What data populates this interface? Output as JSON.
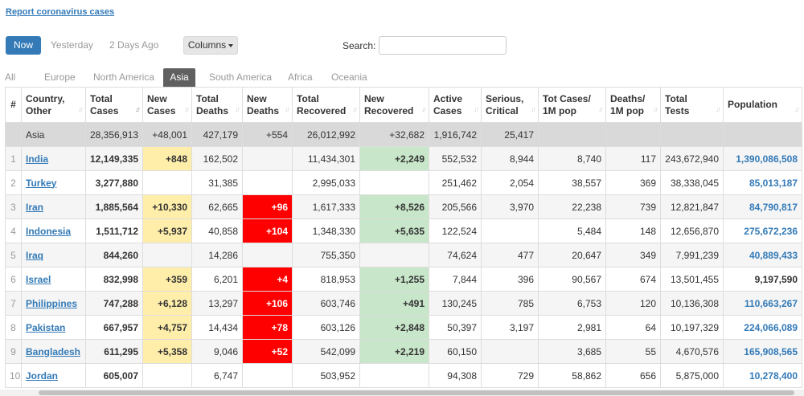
{
  "report_link": "Report coronavirus cases",
  "day_buttons": {
    "now": "Now",
    "yesterday": "Yesterday",
    "two_days": "2 Days Ago"
  },
  "columns_button": "Columns",
  "search": {
    "label": "Search:",
    "value": "",
    "placeholder": ""
  },
  "tabs": [
    "All",
    "Europe",
    "North America",
    "Asia",
    "South America",
    "Africa",
    "Oceania"
  ],
  "active_tab": "Asia",
  "headers": [
    {
      "l1": "#",
      "l2": ""
    },
    {
      "l1": "Country,",
      "l2": "Other"
    },
    {
      "l1": "Total",
      "l2": "Cases"
    },
    {
      "l1": "New",
      "l2": "Cases"
    },
    {
      "l1": "Total",
      "l2": "Deaths"
    },
    {
      "l1": "New",
      "l2": "Deaths"
    },
    {
      "l1": "Total",
      "l2": "Recovered"
    },
    {
      "l1": "New",
      "l2": "Recovered"
    },
    {
      "l1": "Active",
      "l2": "Cases"
    },
    {
      "l1": "Serious,",
      "l2": "Critical"
    },
    {
      "l1": "Tot Cases/",
      "l2": "1M pop"
    },
    {
      "l1": "Deaths/",
      "l2": "1M pop"
    },
    {
      "l1": "Total",
      "l2": "Tests"
    },
    {
      "l1": "",
      "l2": "Population"
    }
  ],
  "total_row": {
    "label": "Asia",
    "total_cases": "28,356,913",
    "new_cases": "+48,001",
    "total_deaths": "427,179",
    "new_deaths": "+554",
    "total_recovered": "26,012,992",
    "new_recovered": "+32,682",
    "active": "1,916,742",
    "critical": "25,417",
    "per_million": "",
    "deaths_per_million": "",
    "tests": "",
    "population": ""
  },
  "rows": [
    {
      "n": "1",
      "country": "India",
      "total_cases": "12,149,335",
      "new_cases": "+848",
      "total_deaths": "162,502",
      "new_deaths": "",
      "total_recovered": "11,434,301",
      "new_recovered": "+2,249",
      "active": "552,532",
      "critical": "8,944",
      "per_million": "8,740",
      "deaths_per_million": "117",
      "tests": "243,672,940",
      "population": "1,390,086,508"
    },
    {
      "n": "2",
      "country": "Turkey",
      "total_cases": "3,277,880",
      "new_cases": "",
      "total_deaths": "31,385",
      "new_deaths": "",
      "total_recovered": "2,995,033",
      "new_recovered": "",
      "active": "251,462",
      "critical": "2,054",
      "per_million": "38,557",
      "deaths_per_million": "369",
      "tests": "38,338,045",
      "population": "85,013,187"
    },
    {
      "n": "3",
      "country": "Iran",
      "total_cases": "1,885,564",
      "new_cases": "+10,330",
      "total_deaths": "62,665",
      "new_deaths": "+96",
      "total_recovered": "1,617,333",
      "new_recovered": "+8,526",
      "active": "205,566",
      "critical": "3,970",
      "per_million": "22,238",
      "deaths_per_million": "739",
      "tests": "12,821,847",
      "population": "84,790,817"
    },
    {
      "n": "4",
      "country": "Indonesia",
      "total_cases": "1,511,712",
      "new_cases": "+5,937",
      "total_deaths": "40,858",
      "new_deaths": "+104",
      "total_recovered": "1,348,330",
      "new_recovered": "+5,635",
      "active": "122,524",
      "critical": "",
      "per_million": "5,484",
      "deaths_per_million": "148",
      "tests": "12,656,870",
      "population": "275,672,236"
    },
    {
      "n": "5",
      "country": "Iraq",
      "total_cases": "844,260",
      "new_cases": "",
      "total_deaths": "14,286",
      "new_deaths": "",
      "total_recovered": "755,350",
      "new_recovered": "",
      "active": "74,624",
      "critical": "477",
      "per_million": "20,647",
      "deaths_per_million": "349",
      "tests": "7,991,239",
      "population": "40,889,433"
    },
    {
      "n": "6",
      "country": "Israel",
      "total_cases": "832,998",
      "new_cases": "+359",
      "total_deaths": "6,201",
      "new_deaths": "+4",
      "total_recovered": "818,953",
      "new_recovered": "+1,255",
      "active": "7,844",
      "critical": "396",
      "per_million": "90,567",
      "deaths_per_million": "674",
      "tests": "13,501,455",
      "population": "9,197,590"
    },
    {
      "n": "7",
      "country": "Philippines",
      "total_cases": "747,288",
      "new_cases": "+6,128",
      "total_deaths": "13,297",
      "new_deaths": "+106",
      "total_recovered": "603,746",
      "new_recovered": "+491",
      "active": "130,245",
      "critical": "785",
      "per_million": "6,753",
      "deaths_per_million": "120",
      "tests": "10,136,308",
      "population": "110,663,267"
    },
    {
      "n": "8",
      "country": "Pakistan",
      "total_cases": "667,957",
      "new_cases": "+4,757",
      "total_deaths": "14,434",
      "new_deaths": "+78",
      "total_recovered": "603,126",
      "new_recovered": "+2,848",
      "active": "50,397",
      "critical": "3,197",
      "per_million": "2,981",
      "deaths_per_million": "64",
      "tests": "10,197,329",
      "population": "224,066,089"
    },
    {
      "n": "9",
      "country": "Bangladesh",
      "total_cases": "611,295",
      "new_cases": "+5,358",
      "total_deaths": "9,046",
      "new_deaths": "+52",
      "total_recovered": "542,099",
      "new_recovered": "+2,219",
      "active": "60,150",
      "critical": "",
      "per_million": "3,685",
      "deaths_per_million": "55",
      "tests": "4,670,576",
      "population": "165,908,565"
    },
    {
      "n": "10",
      "country": "Jordan",
      "total_cases": "605,007",
      "new_cases": "",
      "total_deaths": "6,747",
      "new_deaths": "",
      "total_recovered": "503,952",
      "new_recovered": "",
      "active": "94,308",
      "critical": "729",
      "per_million": "58,862",
      "deaths_per_million": "656",
      "tests": "5,875,000",
      "population": "10,278,400"
    }
  ],
  "colors": {
    "accent": "#337ab7",
    "new_cases_bg": "#ffeeaa",
    "new_deaths_bg": "#ff0000",
    "new_recovered_bg": "#c8e6c9",
    "total_row_bg": "#d9d9d9",
    "active_tab_bg": "#606060"
  }
}
